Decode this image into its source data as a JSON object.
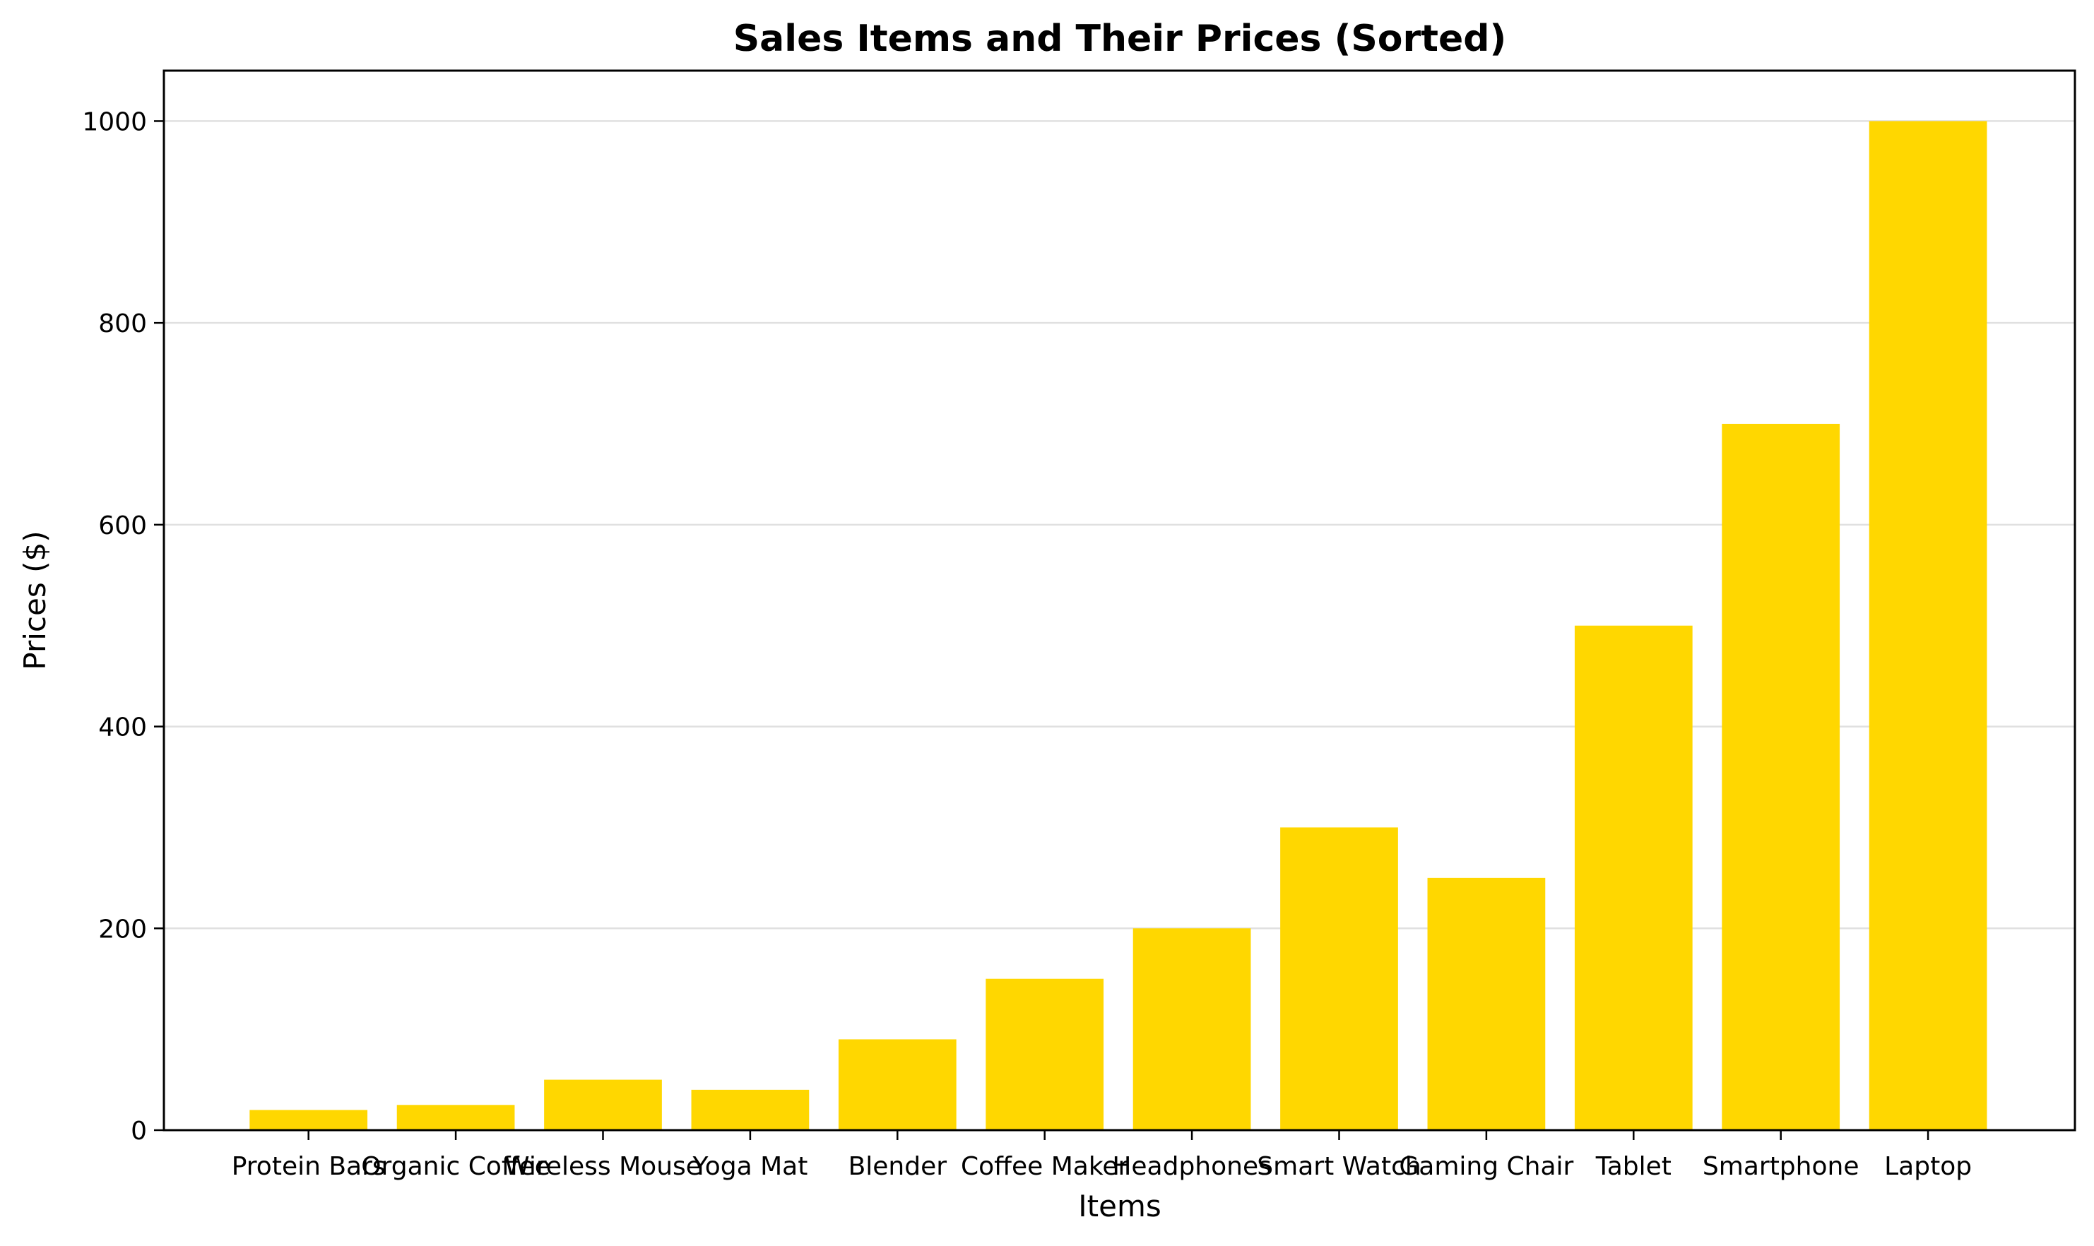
{
  "chart_data": {
    "type": "bar",
    "title": "Sales Items and Their Prices (Sorted)",
    "xlabel": "Items",
    "ylabel": "Prices ($)",
    "categories": [
      "Protein Bars",
      "Organic Coffee",
      "Wireless Mouse",
      "Yoga Mat",
      "Blender",
      "Coffee Maker",
      "Headphones",
      "Smart Watch",
      "Gaming Chair",
      "Tablet",
      "Smartphone",
      "Laptop"
    ],
    "values": [
      20,
      25,
      50,
      40,
      90,
      150,
      200,
      300,
      250,
      500,
      700,
      1000
    ],
    "ylim": [
      0,
      1050
    ],
    "yticks": [
      0,
      200,
      400,
      600,
      800,
      1000
    ],
    "grid": "y-axis",
    "legend": "none",
    "bar_color": "#FFD700"
  }
}
